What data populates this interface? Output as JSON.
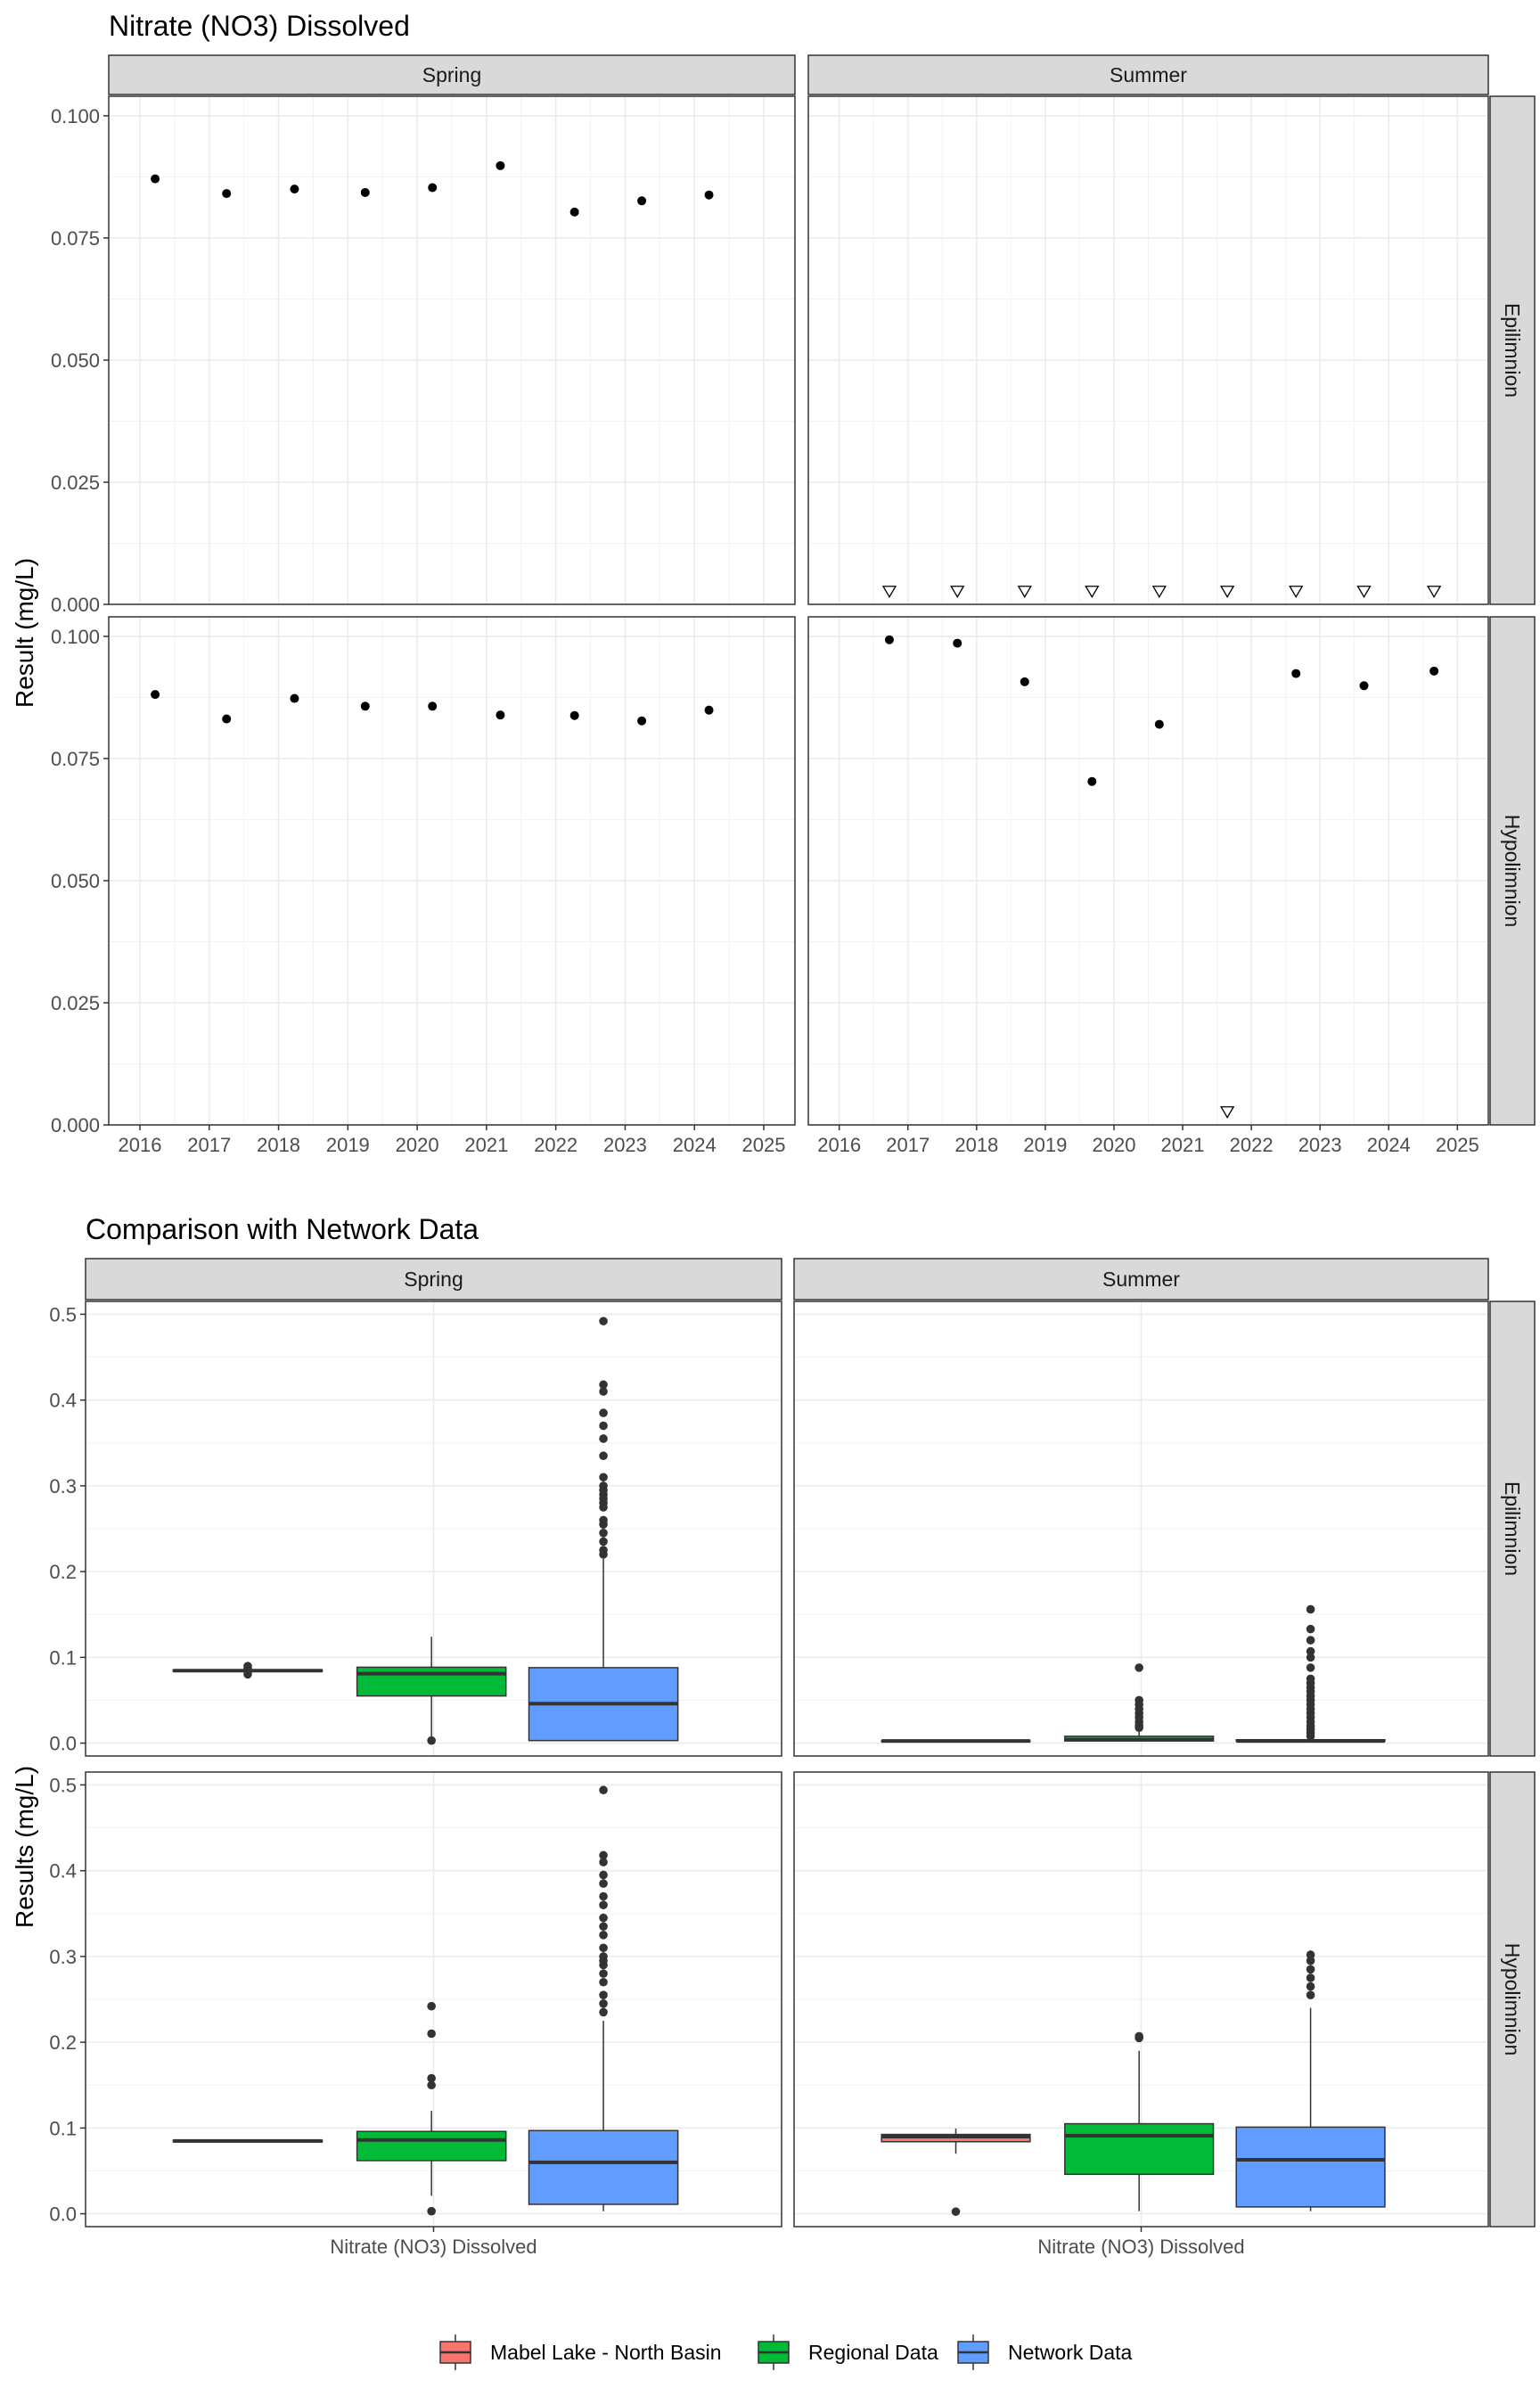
{
  "chart_data": [
    {
      "type": "scatter",
      "title": "Nitrate (NO3) Dissolved",
      "ylabel": "Result (mg/L)",
      "ylim": [
        0,
        0.104
      ],
      "yticks": [
        0,
        0.025,
        0.05,
        0.075,
        0.1
      ],
      "ytick_labels": [
        "0.000",
        "0.025",
        "0.050",
        "0.075",
        "0.100"
      ],
      "xlim": [
        2015.55,
        2025.45
      ],
      "xticks": [
        2016,
        2017,
        2018,
        2019,
        2020,
        2021,
        2022,
        2023,
        2024,
        2025
      ],
      "xtick_labels": [
        "2016",
        "2017",
        "2018",
        "2019",
        "2020",
        "2021",
        "2022",
        "2023",
        "2024",
        "2025"
      ],
      "col_facets": [
        "Spring",
        "Summer"
      ],
      "row_facets": [
        "Epilimnion",
        "Hypolimnion"
      ],
      "grid": true,
      "panels": [
        {
          "season": "Spring",
          "layer": "Epilimnion",
          "points": [
            {
              "x": 2016.22,
              "y": 0.0871
            },
            {
              "x": 2017.25,
              "y": 0.0841
            },
            {
              "x": 2018.23,
              "y": 0.085
            },
            {
              "x": 2019.25,
              "y": 0.0843
            },
            {
              "x": 2020.22,
              "y": 0.0853
            },
            {
              "x": 2021.2,
              "y": 0.0898
            },
            {
              "x": 2022.27,
              "y": 0.0803
            },
            {
              "x": 2023.24,
              "y": 0.0826
            },
            {
              "x": 2024.21,
              "y": 0.0838
            }
          ],
          "censored": []
        },
        {
          "season": "Summer",
          "layer": "Epilimnion",
          "points": [],
          "censored": [
            {
              "x": 2016.73,
              "y": 0.0026
            },
            {
              "x": 2017.72,
              "y": 0.0026
            },
            {
              "x": 2018.7,
              "y": 0.0026
            },
            {
              "x": 2019.68,
              "y": 0.0026
            },
            {
              "x": 2020.66,
              "y": 0.0026
            },
            {
              "x": 2021.65,
              "y": 0.0026
            },
            {
              "x": 2022.65,
              "y": 0.0026
            },
            {
              "x": 2023.64,
              "y": 0.0026
            },
            {
              "x": 2024.66,
              "y": 0.0026
            }
          ]
        },
        {
          "season": "Spring",
          "layer": "Hypolimnion",
          "points": [
            {
              "x": 2016.22,
              "y": 0.0881
            },
            {
              "x": 2017.25,
              "y": 0.0831
            },
            {
              "x": 2018.23,
              "y": 0.0873
            },
            {
              "x": 2019.25,
              "y": 0.0857
            },
            {
              "x": 2020.22,
              "y": 0.0857
            },
            {
              "x": 2021.2,
              "y": 0.0839
            },
            {
              "x": 2022.27,
              "y": 0.0838
            },
            {
              "x": 2023.24,
              "y": 0.0827
            },
            {
              "x": 2024.21,
              "y": 0.0849
            }
          ],
          "censored": []
        },
        {
          "season": "Summer",
          "layer": "Hypolimnion",
          "points": [
            {
              "x": 2016.73,
              "y": 0.0993
            },
            {
              "x": 2017.72,
              "y": 0.0986
            },
            {
              "x": 2018.7,
              "y": 0.0907
            },
            {
              "x": 2019.68,
              "y": 0.0703
            },
            {
              "x": 2020.66,
              "y": 0.082
            },
            {
              "x": 2022.65,
              "y": 0.0924
            },
            {
              "x": 2023.64,
              "y": 0.0899
            },
            {
              "x": 2024.66,
              "y": 0.0929
            }
          ],
          "censored": [
            {
              "x": 2021.65,
              "y": 0.0026
            }
          ]
        }
      ]
    },
    {
      "type": "box",
      "title": "Comparison with Network Data",
      "ylabel": "Results (mg/L)",
      "xlabel_category": "Nitrate (NO3) Dissolved",
      "ylim": [
        -0.015,
        0.515
      ],
      "yticks": [
        0,
        0.1,
        0.2,
        0.3,
        0.4,
        0.5
      ],
      "ytick_labels": [
        "0.0",
        "0.1",
        "0.2",
        "0.3",
        "0.4",
        "0.5"
      ],
      "col_facets": [
        "Spring",
        "Summer"
      ],
      "row_facets": [
        "Epilimnion",
        "Hypolimnion"
      ],
      "grid": true,
      "legend_position": "bottom",
      "series": [
        {
          "name": "Mabel Lake - North Basin",
          "color": "#F8766D"
        },
        {
          "name": "Regional Data",
          "color": "#00BA38"
        },
        {
          "name": "Network Data",
          "color": "#619CFF"
        }
      ],
      "panels": [
        {
          "season": "Spring",
          "layer": "Epilimnion",
          "boxes": [
            {
              "q1": 0.0835,
              "median": 0.0845,
              "q3": 0.0855,
              "whisker_low": 0.0835,
              "whisker_high": 0.0855,
              "outliers": [
                0.0898,
                0.0871,
                0.0803
              ]
            },
            {
              "q1": 0.055,
              "median": 0.081,
              "q3": 0.0885,
              "whisker_low": 0.004,
              "whisker_high": 0.124,
              "outliers": [
                0.003
              ]
            },
            {
              "q1": 0.003,
              "median": 0.046,
              "q3": 0.088,
              "whisker_low": 0.003,
              "whisker_high": 0.215,
              "outliers": [
                0.22,
                0.225,
                0.235,
                0.245,
                0.255,
                0.26,
                0.275,
                0.28,
                0.285,
                0.29,
                0.295,
                0.3,
                0.31,
                0.335,
                0.355,
                0.37,
                0.385,
                0.41,
                0.418,
                0.492
              ]
            }
          ]
        },
        {
          "season": "Summer",
          "layer": "Epilimnion",
          "boxes": [
            {
              "q1": 0.0025,
              "median": 0.0025,
              "q3": 0.0025,
              "whisker_low": 0.0025,
              "whisker_high": 0.0025,
              "outliers": []
            },
            {
              "q1": 0.0025,
              "median": 0.004,
              "q3": 0.008,
              "whisker_low": 0.0025,
              "whisker_high": 0.016,
              "outliers": [
                0.018,
                0.021,
                0.025,
                0.03,
                0.035,
                0.04,
                0.045,
                0.05,
                0.088
              ]
            },
            {
              "q1": 0.0025,
              "median": 0.0025,
              "q3": 0.004,
              "whisker_low": 0.0025,
              "whisker_high": 0.006,
              "outliers": [
                0.008,
                0.012,
                0.016,
                0.02,
                0.025,
                0.03,
                0.035,
                0.04,
                0.045,
                0.05,
                0.055,
                0.06,
                0.065,
                0.07,
                0.075,
                0.088,
                0.1,
                0.107,
                0.12,
                0.133,
                0.156
              ]
            }
          ]
        },
        {
          "season": "Spring",
          "layer": "Hypolimnion",
          "boxes": [
            {
              "q1": 0.0838,
              "median": 0.0849,
              "q3": 0.0857,
              "whisker_low": 0.0838,
              "whisker_high": 0.0857,
              "outliers": []
            },
            {
              "q1": 0.062,
              "median": 0.086,
              "q3": 0.096,
              "whisker_low": 0.021,
              "whisker_high": 0.12,
              "outliers": [
                0.003,
                0.15,
                0.158,
                0.21,
                0.242
              ]
            },
            {
              "q1": 0.011,
              "median": 0.06,
              "q3": 0.097,
              "whisker_low": 0.003,
              "whisker_high": 0.225,
              "outliers": [
                0.235,
                0.245,
                0.255,
                0.27,
                0.28,
                0.29,
                0.295,
                0.3,
                0.31,
                0.325,
                0.335,
                0.345,
                0.36,
                0.37,
                0.385,
                0.395,
                0.41,
                0.418,
                0.494
              ]
            }
          ]
        },
        {
          "season": "Summer",
          "layer": "Hypolimnion",
          "boxes": [
            {
              "q1": 0.084,
              "median": 0.09,
              "q3": 0.0925,
              "whisker_low": 0.07,
              "whisker_high": 0.0993,
              "outliers": [
                0.0025
              ]
            },
            {
              "q1": 0.046,
              "median": 0.091,
              "q3": 0.105,
              "whisker_low": 0.003,
              "whisker_high": 0.19,
              "outliers": [
                0.205,
                0.207
              ]
            },
            {
              "q1": 0.008,
              "median": 0.063,
              "q3": 0.101,
              "whisker_low": 0.003,
              "whisker_high": 0.24,
              "outliers": [
                0.255,
                0.265,
                0.275,
                0.285,
                0.295,
                0.302
              ]
            }
          ]
        }
      ]
    }
  ]
}
